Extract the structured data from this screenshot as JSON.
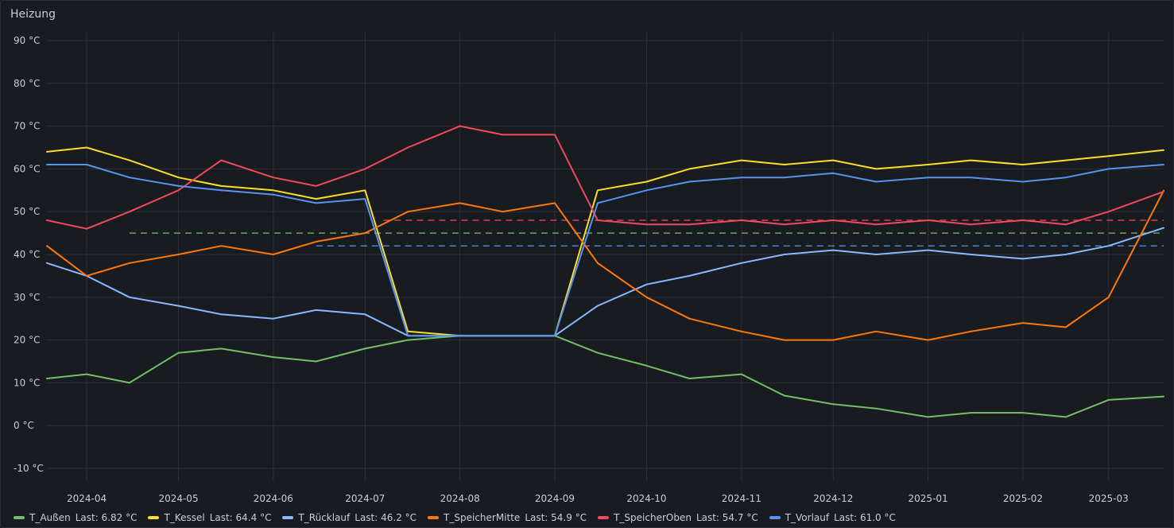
{
  "panel": {
    "title": "Heizung"
  },
  "colors": {
    "background": "#181b1f",
    "grid": "#2c2f36",
    "T_Aussen": "#73bf69",
    "T_Kessel": "#fade2a",
    "T_Ruecklauf": "#8ab8ff",
    "T_SpeicherMitte": "#ff780a",
    "T_SpeicherOben": "#f2495c",
    "T_Vorlauf": "#5794f2"
  },
  "chart_data": {
    "type": "line",
    "ylim": [
      -10,
      90
    ],
    "xlim": [
      "2024-03-19",
      "2025-03-19"
    ],
    "y_ticks": [
      "90 °C",
      "80 °C",
      "70 °C",
      "60 °C",
      "50 °C",
      "40 °C",
      "30 °C",
      "20 °C",
      "10 °C",
      "0 °C",
      "-10 °C"
    ],
    "y_tick_values": [
      90,
      80,
      70,
      60,
      50,
      40,
      30,
      20,
      10,
      0,
      -10
    ],
    "x_ticks": [
      "2024-04",
      "2024-05",
      "2024-06",
      "2024-07",
      "2024-08",
      "2024-09",
      "2024-10",
      "2024-11",
      "2024-12",
      "2025-01",
      "2025-02",
      "2025-03"
    ],
    "x_tick_values": [
      "2024-04-01",
      "2024-05-01",
      "2024-06-01",
      "2024-07-01",
      "2024-08-01",
      "2024-09-01",
      "2024-10-01",
      "2024-11-01",
      "2024-12-01",
      "2025-01-01",
      "2025-02-01",
      "2025-03-01"
    ],
    "grid": true,
    "legend_position": "bottom-left",
    "threshold_lines": [
      {
        "value": 48,
        "color": "#f2495c",
        "from": "2024-07-07",
        "to": "2025-03-19"
      },
      {
        "value": 45,
        "color": "#73bf69",
        "from": "2024-04-15",
        "to": "2025-03-19"
      },
      {
        "value": 42,
        "color": "#5794f2",
        "from": "2024-06-15",
        "to": "2025-03-19"
      }
    ],
    "series": [
      {
        "name": "T_Außen",
        "legend": "T_Außen",
        "last": "Last: 6.82 °C",
        "color": "#73bf69",
        "x": [
          "2024-03-19",
          "2024-04-01",
          "2024-04-15",
          "2024-05-01",
          "2024-05-15",
          "2024-06-01",
          "2024-06-15",
          "2024-07-01",
          "2024-07-15",
          "2024-08-01",
          "2024-08-15",
          "2024-09-01",
          "2024-09-15",
          "2024-10-01",
          "2024-10-15",
          "2024-11-01",
          "2024-11-15",
          "2024-12-01",
          "2024-12-15",
          "2025-01-01",
          "2025-01-15",
          "2025-02-01",
          "2025-02-15",
          "2025-03-01",
          "2025-03-19"
        ],
        "y": [
          11,
          12,
          10,
          17,
          18,
          16,
          15,
          18,
          20,
          21,
          21,
          21,
          17,
          14,
          11,
          12,
          7,
          5,
          4,
          2,
          3,
          3,
          2,
          6,
          6.8
        ]
      },
      {
        "name": "T_Kessel",
        "legend": "T_Kessel",
        "last": "Last: 64.4 °C",
        "color": "#fade2a",
        "x": [
          "2024-03-19",
          "2024-04-01",
          "2024-04-15",
          "2024-05-01",
          "2024-05-15",
          "2024-06-01",
          "2024-06-15",
          "2024-07-01",
          "2024-07-15",
          "2024-08-01",
          "2024-08-15",
          "2024-09-01",
          "2024-09-15",
          "2024-10-01",
          "2024-10-15",
          "2024-11-01",
          "2024-11-15",
          "2024-12-01",
          "2024-12-15",
          "2025-01-01",
          "2025-01-15",
          "2025-02-01",
          "2025-02-15",
          "2025-03-01",
          "2025-03-19"
        ],
        "y": [
          64,
          65,
          62,
          58,
          56,
          55,
          53,
          55,
          22,
          21,
          21,
          21,
          55,
          57,
          60,
          62,
          61,
          62,
          60,
          61,
          62,
          61,
          62,
          63,
          64.4
        ]
      },
      {
        "name": "T_Rücklauf",
        "legend": "T_Rücklauf",
        "last": "Last: 46.2 °C",
        "color": "#8ab8ff",
        "x": [
          "2024-03-19",
          "2024-04-01",
          "2024-04-15",
          "2024-05-01",
          "2024-05-15",
          "2024-06-01",
          "2024-06-15",
          "2024-07-01",
          "2024-07-15",
          "2024-08-01",
          "2024-08-15",
          "2024-09-01",
          "2024-09-15",
          "2024-10-01",
          "2024-10-15",
          "2024-11-01",
          "2024-11-15",
          "2024-12-01",
          "2024-12-15",
          "2025-01-01",
          "2025-01-15",
          "2025-02-01",
          "2025-02-15",
          "2025-03-01",
          "2025-03-19"
        ],
        "y": [
          38,
          35,
          30,
          28,
          26,
          25,
          27,
          26,
          21,
          21,
          21,
          21,
          28,
          33,
          35,
          38,
          40,
          41,
          40,
          41,
          40,
          39,
          40,
          42,
          46.2
        ]
      },
      {
        "name": "T_SpeicherMitte",
        "legend": "T_SpeicherMitte",
        "last": "Last: 54.9 °C",
        "color": "#ff780a",
        "x": [
          "2024-03-19",
          "2024-04-01",
          "2024-04-15",
          "2024-05-01",
          "2024-05-15",
          "2024-06-01",
          "2024-06-15",
          "2024-07-01",
          "2024-07-15",
          "2024-08-01",
          "2024-08-15",
          "2024-09-01",
          "2024-09-15",
          "2024-10-01",
          "2024-10-15",
          "2024-11-01",
          "2024-11-15",
          "2024-12-01",
          "2024-12-15",
          "2025-01-01",
          "2025-01-15",
          "2025-02-01",
          "2025-02-15",
          "2025-03-01",
          "2025-03-19"
        ],
        "y": [
          42,
          35,
          38,
          40,
          42,
          40,
          43,
          45,
          50,
          52,
          50,
          52,
          38,
          30,
          25,
          22,
          20,
          20,
          22,
          20,
          22,
          24,
          23,
          30,
          54.9
        ]
      },
      {
        "name": "T_SpeicherOben",
        "legend": "T_SpeicherOben",
        "last": "Last: 54.7 °C",
        "color": "#f2495c",
        "x": [
          "2024-03-19",
          "2024-04-01",
          "2024-04-15",
          "2024-05-01",
          "2024-05-15",
          "2024-06-01",
          "2024-06-15",
          "2024-07-01",
          "2024-07-15",
          "2024-08-01",
          "2024-08-15",
          "2024-09-01",
          "2024-09-15",
          "2024-10-01",
          "2024-10-15",
          "2024-11-01",
          "2024-11-15",
          "2024-12-01",
          "2024-12-15",
          "2025-01-01",
          "2025-01-15",
          "2025-02-01",
          "2025-02-15",
          "2025-03-01",
          "2025-03-19"
        ],
        "y": [
          48,
          46,
          50,
          55,
          62,
          58,
          56,
          60,
          65,
          70,
          68,
          68,
          48,
          47,
          47,
          48,
          47,
          48,
          47,
          48,
          47,
          48,
          47,
          50,
          54.7
        ]
      },
      {
        "name": "T_Vorlauf",
        "legend": "T_Vorlauf",
        "last": "Last: 61.0 °C",
        "color": "#5794f2",
        "x": [
          "2024-03-19",
          "2024-04-01",
          "2024-04-15",
          "2024-05-01",
          "2024-05-15",
          "2024-06-01",
          "2024-06-15",
          "2024-07-01",
          "2024-07-15",
          "2024-08-01",
          "2024-08-15",
          "2024-09-01",
          "2024-09-15",
          "2024-10-01",
          "2024-10-15",
          "2024-11-01",
          "2024-11-15",
          "2024-12-01",
          "2024-12-15",
          "2025-01-01",
          "2025-01-15",
          "2025-02-01",
          "2025-02-15",
          "2025-03-01",
          "2025-03-19"
        ],
        "y": [
          61,
          61,
          58,
          56,
          55,
          54,
          52,
          53,
          21,
          21,
          21,
          21,
          52,
          55,
          57,
          58,
          58,
          59,
          57,
          58,
          58,
          57,
          58,
          60,
          61.0
        ]
      }
    ]
  }
}
